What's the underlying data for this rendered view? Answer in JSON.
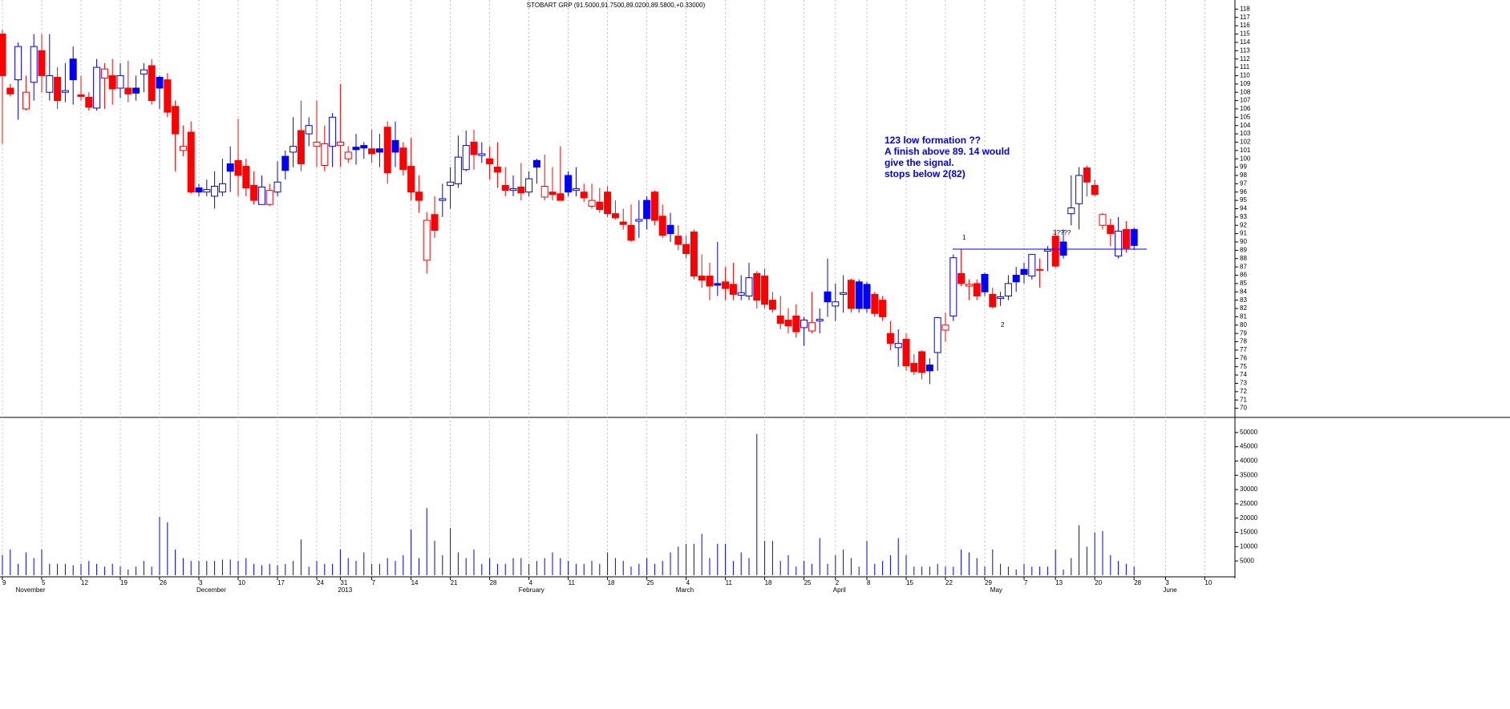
{
  "chart_data": {
    "type": "candlestick",
    "title": "STOBART GRP (91.5000,91.7500,89.0200,89.5800,+0.33000)",
    "categories": [
      "9",
      null,
      null,
      null,
      null,
      "5",
      null,
      null,
      null,
      null,
      "12",
      null,
      null,
      null,
      null,
      "19",
      null,
      null,
      null,
      null,
      "26",
      null,
      null,
      null,
      null,
      "3",
      null,
      null,
      null,
      null,
      "10",
      null,
      null,
      null,
      null,
      "17",
      null,
      null,
      null,
      null,
      "24",
      null,
      null,
      "31",
      null,
      null,
      null,
      "7",
      null,
      null,
      null,
      null,
      "14",
      null,
      null,
      null,
      null,
      "21",
      null,
      null,
      null,
      null,
      "28",
      null,
      null,
      null,
      null,
      "4",
      null,
      null,
      null,
      null,
      "11",
      null,
      null,
      null,
      null,
      "18",
      null,
      null,
      null,
      null,
      "25",
      null,
      null,
      null,
      null,
      "4",
      null,
      null,
      null,
      null,
      "11",
      null,
      null,
      null,
      null,
      "18",
      null,
      null,
      null,
      null,
      "25",
      null,
      null,
      null,
      "2",
      null,
      null,
      null,
      "8",
      null,
      null,
      null,
      null,
      "15",
      null,
      null,
      null,
      null,
      "22",
      null,
      null,
      null,
      null,
      "29",
      null,
      null,
      null,
      null,
      "7",
      null,
      null,
      null,
      "13",
      null,
      null,
      null,
      null,
      "20",
      null,
      null,
      null,
      null,
      "28",
      null,
      null,
      null,
      "3",
      null,
      null,
      null,
      null,
      "10",
      null,
      null,
      null
    ],
    "month_labels": [
      null,
      null,
      "November",
      null,
      null,
      null,
      null,
      null,
      null,
      null,
      null,
      null,
      null,
      null,
      null,
      null,
      null,
      null,
      null,
      null,
      null,
      null,
      null,
      null,
      null,
      "December",
      null,
      null,
      null,
      null,
      null,
      null,
      null,
      null,
      null,
      null,
      null,
      null,
      null,
      null,
      null,
      null,
      null,
      "2013",
      null,
      null,
      null,
      null,
      null,
      null,
      null,
      null,
      null,
      null,
      null,
      null,
      null,
      null,
      null,
      null,
      null,
      null,
      null,
      null,
      null,
      null,
      "February",
      null,
      null,
      null,
      null,
      null,
      null,
      null,
      null,
      null,
      null,
      null,
      null,
      null,
      null,
      null,
      null,
      null,
      null,
      null,
      "March",
      null,
      null,
      null,
      null,
      null,
      null,
      null,
      null,
      null,
      null,
      null,
      null,
      null,
      null,
      null,
      null,
      null,
      null,
      null,
      "April",
      null,
      null,
      null,
      null,
      null,
      null,
      null,
      null,
      null,
      null,
      null,
      null,
      null,
      null,
      null,
      null,
      null,
      null,
      null,
      "May",
      null,
      null,
      null,
      null,
      null,
      null,
      null,
      null,
      null,
      null,
      null,
      null,
      null,
      null,
      null,
      null,
      null,
      null,
      null,
      null,
      null,
      "June",
      null,
      null,
      null,
      null,
      null,
      null,
      null,
      null
    ],
    "open": [
      115,
      108.5,
      109.5,
      106,
      109.2,
      113,
      108,
      109.8,
      108,
      112,
      107.7,
      107.4,
      106.1,
      109.7,
      110,
      108.5,
      108.5,
      108.5,
      110.2,
      111.2,
      109.8,
      109.5,
      106.3,
      101,
      103.2,
      96.5,
      96,
      95.5,
      96,
      99.4,
      99.8,
      99.1,
      96.8,
      94.5,
      94.5,
      96,
      100.3,
      100.8,
      103.4,
      103,
      101.5,
      99.2,
      101.5,
      101.6,
      100,
      101.4,
      101.6,
      101.2,
      101.2,
      103.8,
      102.2,
      101.3,
      99.1,
      96,
      87.8,
      93.3,
      95,
      96.8,
      97,
      98.7,
      102,
      100.4,
      100,
      99,
      96.8,
      96.2,
      96.6,
      96,
      99.8,
      95.4,
      96,
      95.8,
      98,
      96.2,
      96,
      94.3,
      94.8,
      96,
      93.4,
      92.4,
      92,
      92.5,
      95,
      96,
      93.1,
      92,
      90.7,
      89.7,
      91.2,
      85.9,
      85.9,
      85,
      85.2,
      84.9,
      83.6,
      83.5,
      86.2,
      85.9,
      83,
      81.1,
      80.6,
      81.1,
      79.7,
      79.3,
      80.5,
      84,
      82.3,
      83.7,
      85.4,
      85.2,
      84.9,
      83.7,
      83,
      79,
      77.3,
      78.3,
      75.4,
      76.8,
      75.2,
      76.7,
      79.4,
      81.1,
      86.2,
      84.7,
      85,
      86.1,
      83.7,
      83.2,
      83.5,
      86,
      86.7,
      85.9,
      86.6,
      88.9,
      90.7,
      90,
      93.4,
      94.6,
      98.9,
      96.8,
      92,
      92,
      88.3,
      91.5,
      91.5,
      null,
      null,
      null,
      null,
      null,
      null,
      null,
      null,
      null,
      null,
      null,
      null
    ],
    "high": [
      115.5,
      109,
      114,
      110,
      115,
      115,
      115,
      111,
      111.5,
      113.5,
      110,
      108,
      112,
      111.5,
      112,
      111.5,
      111.8,
      110,
      111.5,
      112,
      110,
      110.3,
      107,
      104,
      104.5,
      97,
      97.5,
      98.5,
      100,
      101.5,
      104.8,
      100,
      98.5,
      98,
      97,
      99.7,
      101,
      105,
      107,
      105,
      107,
      104,
      105.5,
      109,
      101.5,
      103,
      102,
      103.5,
      103,
      104.5,
      104.5,
      102,
      102.5,
      98,
      93.6,
      95.5,
      97,
      99,
      102.8,
      103.4,
      103.5,
      102,
      101.5,
      102,
      99,
      98,
      99.5,
      98.5,
      100,
      100.5,
      99,
      101.5,
      98.5,
      99,
      97,
      97,
      96.5,
      96.7,
      95,
      94,
      94.5,
      95,
      95.5,
      96.2,
      94.5,
      93.5,
      92,
      90.8,
      91.5,
      88.5,
      87.5,
      90,
      87,
      87.5,
      86,
      87.5,
      86.5,
      86.8,
      84,
      83.5,
      82,
      82.5,
      81,
      84,
      82,
      88,
      85,
      86,
      85.6,
      85.5,
      85.2,
      84,
      83.5,
      80.5,
      79.5,
      79,
      76.5,
      77,
      76,
      81,
      81.5,
      88.5,
      89.1,
      85.5,
      85.5,
      86.3,
      84.5,
      84,
      86,
      87,
      87.5,
      88.5,
      88,
      89.5,
      91,
      91.5,
      98,
      99,
      99.2,
      97.5,
      93.5,
      92.8,
      93,
      92.5,
      91.75,
      null,
      null,
      null,
      null,
      null,
      null,
      null,
      null,
      null,
      null,
      null,
      null
    ],
    "low": [
      101.8,
      107.5,
      104.7,
      105.8,
      107,
      108,
      107,
      106,
      106.8,
      106.5,
      107,
      105.8,
      105.8,
      106,
      106.5,
      107.3,
      106.8,
      107,
      108,
      106.5,
      106,
      105,
      98.5,
      100.3,
      95.8,
      95.5,
      95.5,
      94,
      95.5,
      96,
      95.5,
      95.5,
      94.5,
      94.5,
      94.3,
      95.5,
      97.5,
      99,
      98.5,
      101.5,
      99,
      98.5,
      99,
      99,
      99.5,
      99.3,
      100,
      99.5,
      99,
      97,
      99,
      98,
      95,
      93.5,
      86.2,
      90.5,
      93,
      94,
      96.5,
      98.5,
      98.7,
      99.5,
      97.5,
      96.5,
      95.5,
      95.5,
      95,
      95.5,
      97,
      95,
      95,
      95,
      95.5,
      95.5,
      94.8,
      94,
      93.5,
      93,
      92.7,
      91.5,
      90,
      90.5,
      91.5,
      92,
      90.5,
      90,
      89,
      88,
      85.5,
      84.5,
      83,
      83.5,
      83,
      83,
      83,
      83,
      82,
      82,
      81.5,
      79.5,
      79,
      78.5,
      77.5,
      79,
      79,
      81,
      80.5,
      81.5,
      81.5,
      81.5,
      81.5,
      81,
      80.5,
      77,
      75,
      74.5,
      74,
      73.5,
      72.9,
      74.5,
      78,
      80.5,
      84.7,
      83,
      83,
      83.5,
      82,
      82.3,
      83,
      84,
      85,
      85.5,
      84.5,
      86.5,
      86.9,
      88,
      92,
      91.5,
      95.5,
      95.5,
      91.5,
      89.5,
      88,
      88.7,
      89.02,
      null,
      null,
      null,
      null,
      null,
      null,
      null,
      null,
      null,
      null,
      null,
      null
    ],
    "close": [
      110,
      107.8,
      113.5,
      108,
      113.5,
      110,
      110,
      107,
      108.2,
      109.5,
      107.5,
      106.2,
      111,
      110.8,
      108.4,
      110,
      107.8,
      107.9,
      110.7,
      107,
      108.5,
      105.6,
      103,
      101.5,
      96,
      96,
      96.3,
      96.7,
      97,
      98.5,
      98,
      96.5,
      95,
      96.6,
      96.2,
      97.2,
      98.6,
      101.5,
      99.4,
      104,
      102,
      101.8,
      105,
      102,
      100.8,
      101.1,
      101.3,
      100.6,
      100.8,
      98.3,
      100.8,
      98.7,
      96,
      95,
      92.6,
      91.4,
      95.2,
      97.2,
      100.2,
      101.6,
      100.5,
      100.6,
      99.4,
      98.4,
      96.2,
      96.4,
      95.9,
      97.6,
      99,
      96.7,
      95.7,
      95,
      96,
      96.4,
      95.3,
      95,
      93.9,
      93.4,
      92.9,
      92.1,
      90.2,
      92.7,
      92.8,
      92.6,
      90.8,
      91,
      89.7,
      88.6,
      85.9,
      85.4,
      84.7,
      84.8,
      84.4,
      83.7,
      83.9,
      85.7,
      83,
      82.5,
      81.9,
      80.2,
      79.9,
      79.2,
      80.6,
      80.3,
      80.7,
      82.8,
      82.8,
      83.9,
      82,
      82,
      82,
      81.4,
      81,
      77.8,
      77.8,
      75.1,
      74.4,
      74.3,
      74.5,
      80.9,
      80,
      88.1,
      85,
      84.9,
      83.5,
      84,
      82.2,
      83.4,
      85,
      85.2,
      86.1,
      88.5,
      86.7,
      89.1,
      87.1,
      88.4,
      94.1,
      98,
      97.2,
      95.7,
      93.3,
      91,
      91.3,
      89.25,
      89.58,
      null,
      null,
      null,
      null,
      null,
      null,
      null,
      null,
      null,
      null,
      null,
      null
    ],
    "volume": [
      7000,
      9000,
      4000,
      8000,
      6000,
      9000,
      4000,
      4000,
      4000,
      3500,
      4000,
      5000,
      4000,
      3000,
      4000,
      3000,
      2000,
      3000,
      5000,
      3000,
      20500,
      18500,
      9000,
      6000,
      5000,
      5000,
      5000,
      5000,
      5500,
      5500,
      5000,
      6000,
      4000,
      3500,
      4000,
      3500,
      4000,
      5000,
      12500,
      3000,
      5000,
      4000,
      4000,
      9000,
      6000,
      5000,
      8000,
      4000,
      4000,
      6000,
      5000,
      7000,
      16000,
      6000,
      23500,
      12000,
      7000,
      16500,
      8000,
      6000,
      9000,
      4000,
      6000,
      4000,
      4000,
      6000,
      6000,
      4000,
      5000,
      6000,
      8000,
      6000,
      5000,
      4000,
      4000,
      5000,
      4000,
      8000,
      6000,
      5000,
      3000,
      4000,
      6000,
      4000,
      5000,
      8000,
      10000,
      11000,
      11000,
      14500,
      6000,
      11000,
      11000,
      5000,
      8000,
      6000,
      49500,
      12000,
      12000,
      5000,
      7000,
      3000,
      5000,
      4000,
      13000,
      4000,
      7000,
      9000,
      6000,
      3000,
      12000,
      4000,
      5000,
      7000,
      13000,
      7000,
      3000,
      3000,
      3000,
      4000,
      3000,
      3000,
      9000,
      8000,
      6000,
      3000,
      9000,
      4000,
      3000,
      2000,
      4000,
      3000,
      3000,
      3000,
      9000,
      2000,
      6000,
      17500,
      10000,
      15000,
      15500,
      7000,
      5000,
      4000,
      3000,
      null,
      null,
      null,
      null,
      null,
      null,
      null,
      null,
      null,
      null,
      null,
      null
    ],
    "ylim": [
      69,
      119
    ],
    "yticks": [
      70,
      71,
      72,
      73,
      74,
      75,
      76,
      77,
      78,
      79,
      80,
      81,
      82,
      83,
      84,
      85,
      86,
      87,
      88,
      89,
      90,
      91,
      92,
      93,
      94,
      95,
      96,
      97,
      98,
      99,
      100,
      101,
      102,
      103,
      104,
      105,
      106,
      107,
      108,
      109,
      110,
      111,
      112,
      113,
      114,
      115,
      116,
      117,
      118
    ],
    "volume_ylim": [
      0,
      55000
    ],
    "volume_yticks": [
      5000,
      10000,
      15000,
      20000,
      25000,
      30000,
      35000,
      40000,
      45000,
      50000
    ],
    "up_color": "#0000ff",
    "down_color": "#ff0000",
    "volume_color": "#0000ff",
    "grid": true,
    "annotations": [
      "123 low formation ??",
      "A finish above 89. 14 would",
      "give the signal.",
      "stops below 2(82)"
    ],
    "point_labels": [
      "1",
      "2",
      "3????"
    ],
    "support_level": 89.14
  }
}
